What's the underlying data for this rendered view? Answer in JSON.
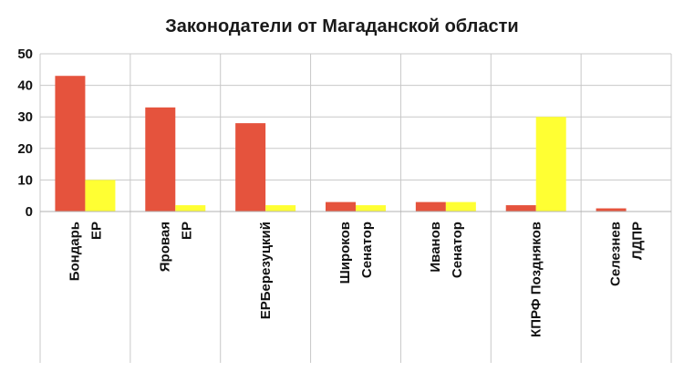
{
  "chart_data": {
    "type": "bar",
    "title": "Законодатели от Магаданской области",
    "categories": [
      [
        "Бондарь",
        "ЕР"
      ],
      [
        "Яровая",
        "ЕР"
      ],
      [
        "ЕРБерезуцкий"
      ],
      [
        "Широков",
        "Сенатор"
      ],
      [
        "Иванов",
        "Сенатор"
      ],
      [
        "КПРФ Поздняков"
      ],
      [
        "Селезнев",
        "ЛДПР"
      ]
    ],
    "series": [
      {
        "values": [
          43,
          33,
          28,
          3,
          3,
          2,
          1
        ],
        "color": "#E5533D"
      },
      {
        "values": [
          10,
          2,
          2,
          2,
          3,
          30,
          0
        ],
        "color": "#FFFF33"
      }
    ],
    "ylim": [
      0,
      50
    ],
    "yticks": [
      "0",
      "10",
      "20",
      "30",
      "40",
      "50"
    ],
    "grid": true,
    "legend": "none"
  }
}
